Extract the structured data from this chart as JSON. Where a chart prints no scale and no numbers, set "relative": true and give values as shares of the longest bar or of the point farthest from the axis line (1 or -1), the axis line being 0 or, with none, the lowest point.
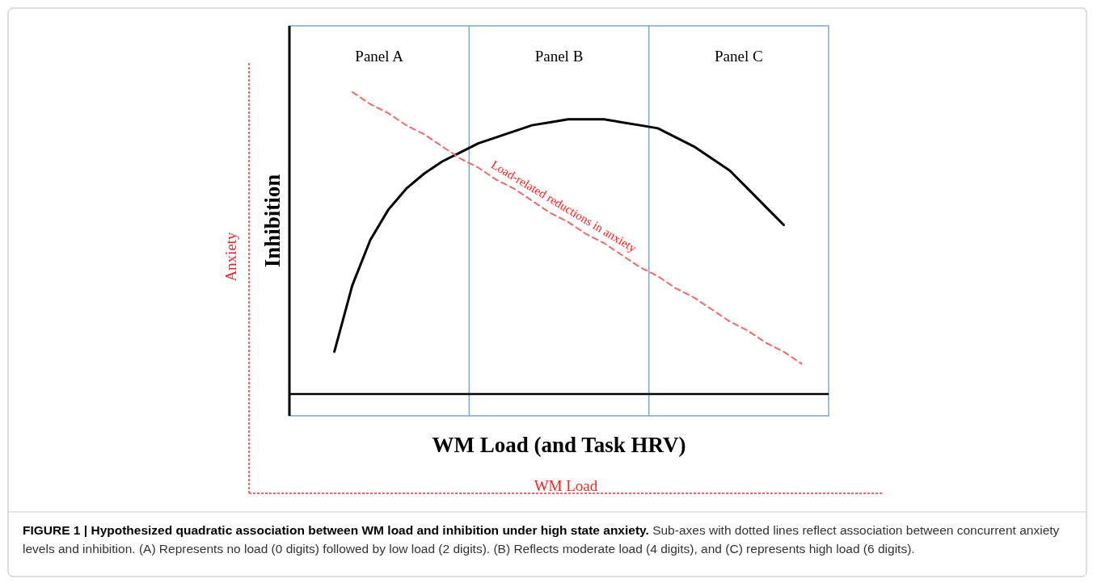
{
  "chart_data": {
    "type": "line",
    "title": "FIGURE 1 | Hypothesized quadratic association between WM load and inhibition under high state anxiety.",
    "xlabel": "WM Load (and Task HRV)",
    "ylabel": "Inhibition",
    "relative": true,
    "categories": [
      null,
      null,
      null,
      null,
      null,
      null,
      null,
      null,
      null,
      null,
      null,
      null,
      null,
      null,
      null,
      null,
      null,
      null,
      null,
      null,
      null,
      null,
      null,
      null,
      null,
      null,
      null,
      null,
      null,
      null
    ],
    "series": [
      {
        "color": "#000000",
        "line_style": "solid",
        "values": [
          null,
          null,
          0.14,
          0.36,
          0.51,
          0.61,
          0.68,
          0.73,
          0.77,
          0.8,
          0.83,
          0.85,
          0.87,
          0.89,
          0.9,
          0.91,
          0.91,
          0.91,
          0.9,
          0.89,
          0.88,
          0.85,
          0.82,
          0.78,
          0.74,
          0.68,
          0.62,
          0.56,
          null,
          null
        ]
      },
      {
        "color": "#f06a6a",
        "line_style": "dashed",
        "values": [
          null,
          null,
          null,
          1.0,
          0.96,
          0.93,
          0.89,
          0.86,
          0.82,
          0.78,
          0.75,
          0.71,
          0.68,
          0.64,
          0.6,
          0.57,
          0.53,
          0.5,
          0.46,
          0.42,
          0.39,
          0.35,
          0.32,
          0.28,
          0.24,
          0.21,
          0.17,
          0.14,
          0.1,
          null
        ]
      }
    ],
    "annotations": [
      "Load-related reductions in anxiety",
      "Panel A",
      "Panel B",
      "Panel C",
      "Anxiety",
      "WM Load",
      "Sub-axes with dotted lines reflect association between concurrent anxiety levels and inhibition. (A) Represents no load (0 digits) followed by low load (2 digits). (B) Reflects moderate load (4 digits), and (C) represents high load (6 digits)."
    ]
  }
}
